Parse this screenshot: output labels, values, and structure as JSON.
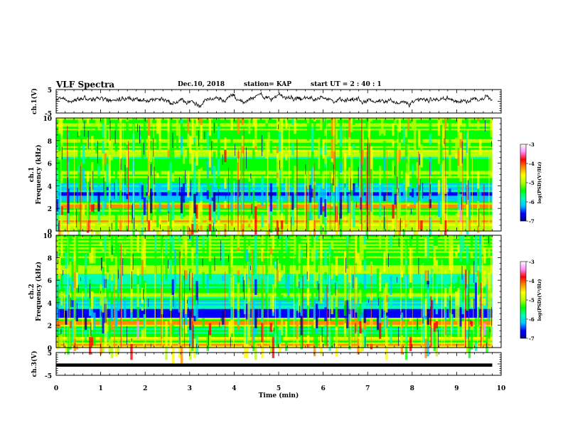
{
  "header": {
    "title": "VLF Spectra",
    "date": "Dec.10, 2018",
    "station": "station= KAP",
    "start": "start  UT =   2 : 40 : 1"
  },
  "colors": {
    "spectrum_scale": [
      "#00008b",
      "#0000ff",
      "#00c8ff",
      "#00ffb4",
      "#00ff00",
      "#b4ff00",
      "#ffff00",
      "#ff8c00",
      "#ff0000",
      "#ff8cff",
      "#ffffff"
    ]
  },
  "chart_data": [
    {
      "type": "line",
      "panel": "ch1-waveform",
      "ylabel": "ch.1(V)",
      "ylim": [
        -5,
        5
      ],
      "yticks": [
        "5",
        "-5"
      ],
      "xlim": [
        0,
        10
      ],
      "time_span_min": 9.8,
      "description_values": "noisy waveform roughly between -2 and +3 V"
    },
    {
      "type": "heatmap",
      "panel": "ch1-spectrogram",
      "ylabel_line1": "ch.1",
      "ylabel_line2": "Frequency (kHz)",
      "ylim": [
        0,
        10
      ],
      "yticks": [
        "0",
        "2",
        "4",
        "6",
        "8",
        "10"
      ],
      "xlim": [
        0,
        10
      ],
      "time_span_min": 9.8,
      "colorbar": {
        "label": "log(PSD)(V²/Hz)",
        "range": [
          -7,
          -3
        ],
        "ticks": [
          "-3",
          "-4",
          "-5",
          "-6",
          "-7"
        ]
      }
    },
    {
      "type": "heatmap",
      "panel": "ch2-spectrogram",
      "ylabel_line1": "ch.2",
      "ylabel_line2": "Frequency (kHz)",
      "ylim": [
        0,
        10
      ],
      "yticks": [
        "0",
        "2",
        "4",
        "6",
        "8",
        "10"
      ],
      "xlim": [
        0,
        10
      ],
      "time_span_min": 9.8,
      "colorbar": {
        "label": "log(PSD)(V²/Hz)",
        "range": [
          -7,
          -3
        ],
        "ticks": [
          "-3",
          "-4",
          "-5",
          "-6",
          "-7"
        ]
      }
    },
    {
      "type": "line",
      "panel": "ch3-waveform",
      "ylabel": "ch.3(V)",
      "ylim": [
        -5,
        5
      ],
      "yticks": [
        "5",
        "-5"
      ],
      "xlim": [
        0,
        10
      ],
      "time_span_min": 9.8,
      "constant_value": -0.5
    }
  ],
  "xaxis": {
    "label": "Time (min)",
    "ticks": [
      "0",
      "1",
      "2",
      "3",
      "4",
      "5",
      "6",
      "7",
      "8",
      "9",
      "10"
    ]
  }
}
